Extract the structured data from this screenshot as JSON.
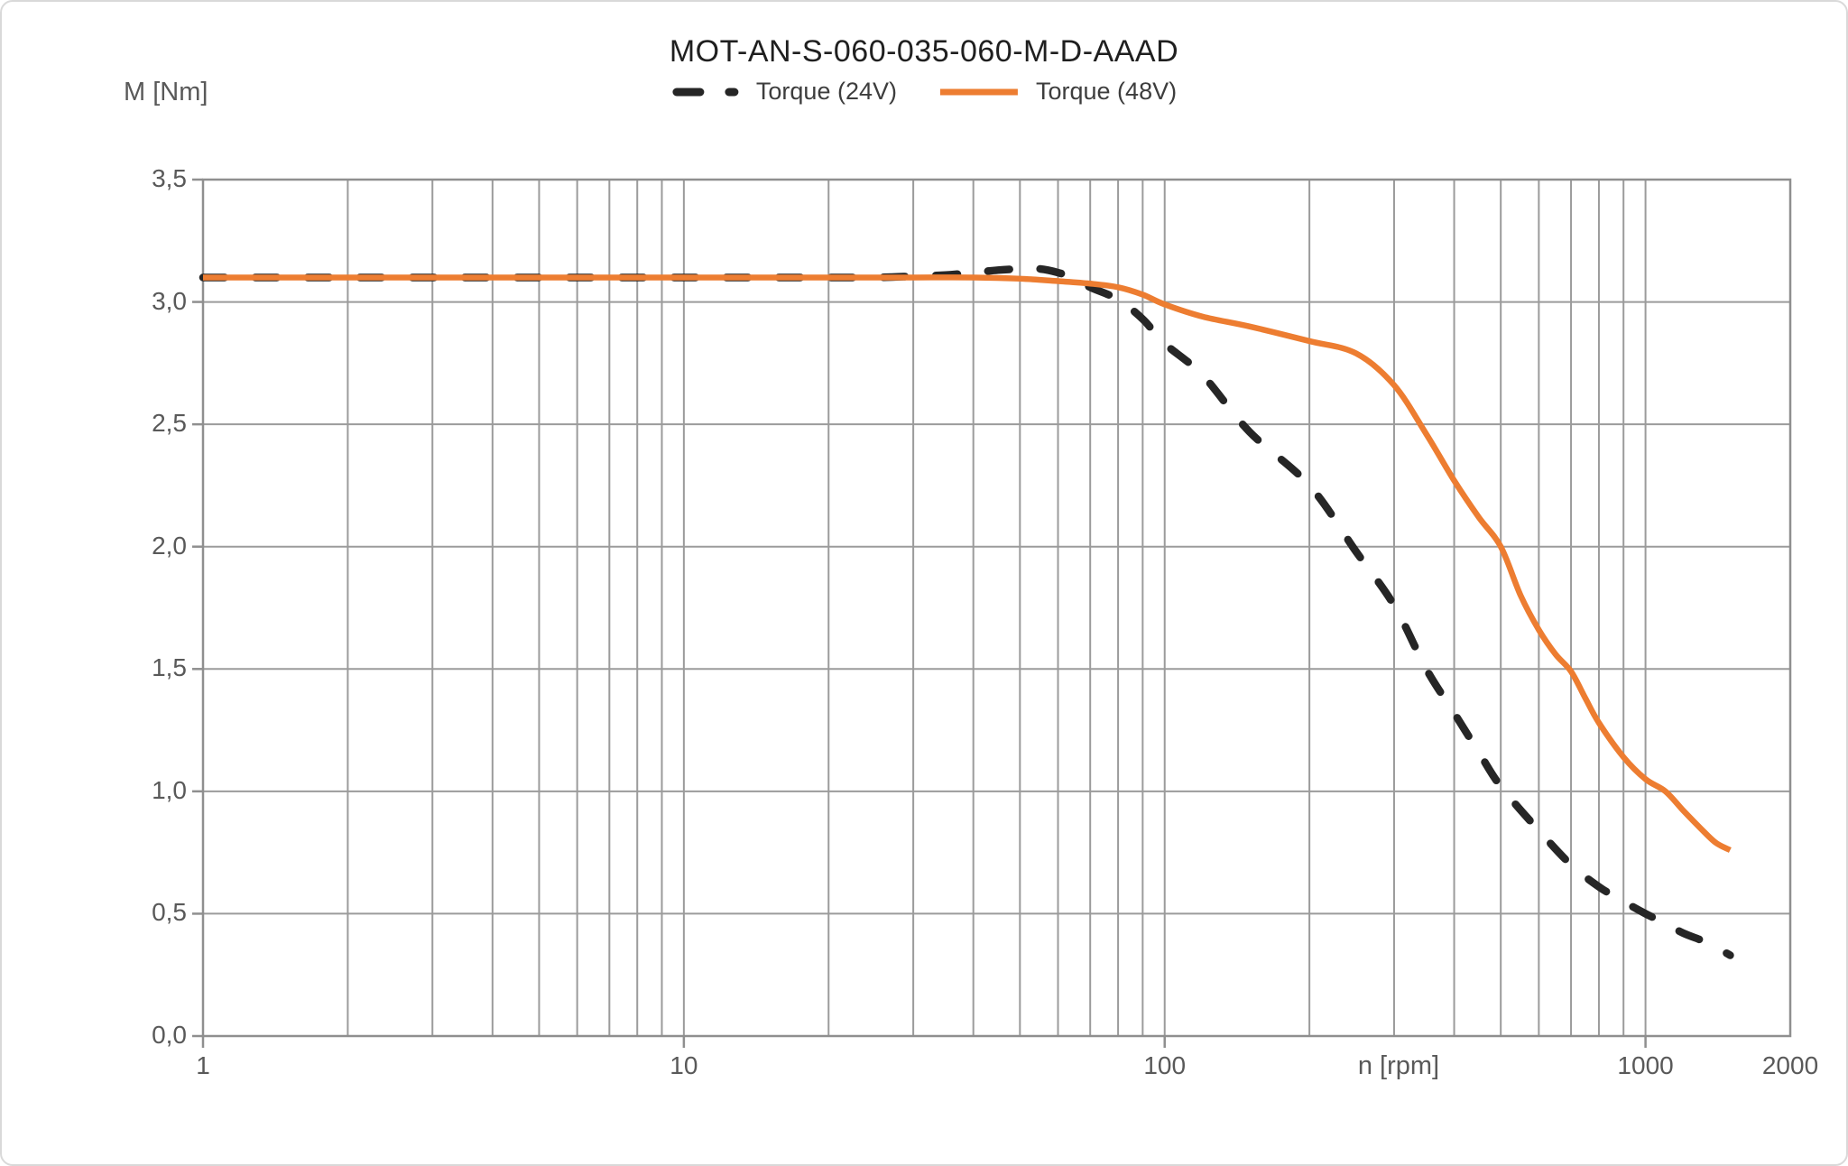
{
  "title": "MOT-AN-S-060-035-060-M-D-AAAD",
  "colors": {
    "torque_24v": "#262626",
    "torque_48v": "#ED7D31",
    "gridline": "#9b9b9b",
    "plot_border": "#8f8f8f",
    "axis_text": "#595959",
    "title_text": "#1f1f1f",
    "background": "#ffffff"
  },
  "axes": {
    "y_label": "M [Nm]",
    "x_label": "n [rpm]",
    "x_scale": "log",
    "x_range": [
      1,
      2000
    ],
    "y_range": [
      0,
      3.5
    ],
    "x_ticks": [
      {
        "value": 1,
        "label": "1"
      },
      {
        "value": 10,
        "label": "10"
      },
      {
        "value": 100,
        "label": "100"
      },
      {
        "value": 1000,
        "label": "1000"
      },
      {
        "value": 2000,
        "label": "2000"
      }
    ],
    "y_ticks": [
      {
        "value": 0.0,
        "label": "0,0"
      },
      {
        "value": 0.5,
        "label": "0,5"
      },
      {
        "value": 1.0,
        "label": "1,0"
      },
      {
        "value": 1.5,
        "label": "1,5"
      },
      {
        "value": 2.0,
        "label": "2,0"
      },
      {
        "value": 2.5,
        "label": "2,5"
      },
      {
        "value": 3.0,
        "label": "3,0"
      },
      {
        "value": 3.5,
        "label": "3,5"
      }
    ]
  },
  "chart_data": {
    "type": "line",
    "title": "MOT-AN-S-060-035-060-M-D-AAAD",
    "xlabel": "n [rpm]",
    "ylabel": "M [Nm]",
    "x_scale": "log",
    "xlim": [
      1,
      2000
    ],
    "ylim": [
      0,
      3.5
    ],
    "grid": true,
    "legend_position": "top-center",
    "series": [
      {
        "name": "Torque (24V)",
        "color": "#262626",
        "style": "dashed",
        "points": [
          [
            1,
            3.1
          ],
          [
            2,
            3.1
          ],
          [
            4,
            3.1
          ],
          [
            7,
            3.1
          ],
          [
            10,
            3.1
          ],
          [
            15,
            3.1
          ],
          [
            20,
            3.1
          ],
          [
            25,
            3.1
          ],
          [
            30,
            3.105
          ],
          [
            35,
            3.11
          ],
          [
            40,
            3.12
          ],
          [
            45,
            3.13
          ],
          [
            50,
            3.135
          ],
          [
            55,
            3.135
          ],
          [
            60,
            3.12
          ],
          [
            65,
            3.095
          ],
          [
            70,
            3.06
          ],
          [
            80,
            3.01
          ],
          [
            90,
            2.93
          ],
          [
            100,
            2.83
          ],
          [
            120,
            2.7
          ],
          [
            150,
            2.47
          ],
          [
            200,
            2.25
          ],
          [
            250,
            1.98
          ],
          [
            300,
            1.76
          ],
          [
            350,
            1.5
          ],
          [
            400,
            1.32
          ],
          [
            450,
            1.16
          ],
          [
            500,
            1.02
          ],
          [
            600,
            0.84
          ],
          [
            700,
            0.7
          ],
          [
            800,
            0.61
          ],
          [
            900,
            0.55
          ],
          [
            1000,
            0.5
          ],
          [
            1100,
            0.46
          ],
          [
            1200,
            0.42
          ],
          [
            1350,
            0.38
          ],
          [
            1500,
            0.33
          ]
        ]
      },
      {
        "name": "Torque (48V)",
        "color": "#ED7D31",
        "style": "solid",
        "points": [
          [
            1,
            3.1
          ],
          [
            2,
            3.1
          ],
          [
            4,
            3.1
          ],
          [
            7,
            3.1
          ],
          [
            10,
            3.1
          ],
          [
            15,
            3.1
          ],
          [
            20,
            3.1
          ],
          [
            25,
            3.1
          ],
          [
            30,
            3.1
          ],
          [
            40,
            3.1
          ],
          [
            50,
            3.095
          ],
          [
            60,
            3.085
          ],
          [
            70,
            3.075
          ],
          [
            80,
            3.06
          ],
          [
            90,
            3.03
          ],
          [
            100,
            2.99
          ],
          [
            120,
            2.94
          ],
          [
            150,
            2.9
          ],
          [
            200,
            2.84
          ],
          [
            250,
            2.79
          ],
          [
            300,
            2.66
          ],
          [
            350,
            2.46
          ],
          [
            400,
            2.27
          ],
          [
            450,
            2.12
          ],
          [
            500,
            2.0
          ],
          [
            550,
            1.8
          ],
          [
            600,
            1.66
          ],
          [
            650,
            1.56
          ],
          [
            700,
            1.49
          ],
          [
            750,
            1.38
          ],
          [
            800,
            1.28
          ],
          [
            900,
            1.14
          ],
          [
            1000,
            1.05
          ],
          [
            1100,
            1.0
          ],
          [
            1200,
            0.92
          ],
          [
            1300,
            0.85
          ],
          [
            1400,
            0.79
          ],
          [
            1500,
            0.76
          ]
        ]
      }
    ]
  }
}
